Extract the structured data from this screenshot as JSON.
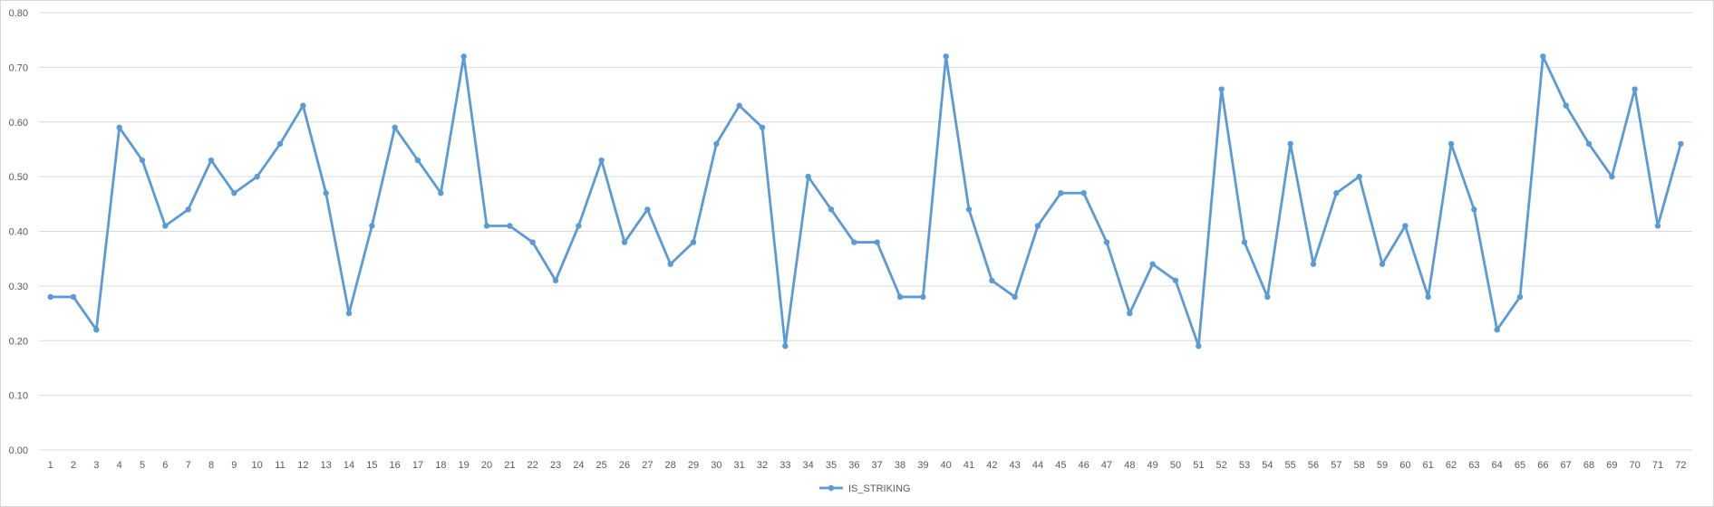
{
  "chart_data": {
    "type": "line",
    "title": "",
    "xlabel": "",
    "ylabel": "",
    "x": [
      1,
      2,
      3,
      4,
      5,
      6,
      7,
      8,
      9,
      10,
      11,
      12,
      13,
      14,
      15,
      16,
      17,
      18,
      19,
      20,
      21,
      22,
      23,
      24,
      25,
      26,
      27,
      28,
      29,
      30,
      31,
      32,
      33,
      34,
      35,
      36,
      37,
      38,
      39,
      40,
      41,
      42,
      43,
      44,
      45,
      46,
      47,
      48,
      49,
      50,
      51,
      52,
      53,
      54,
      55,
      56,
      57,
      58,
      59,
      60,
      61,
      62,
      63,
      64,
      65,
      66,
      67,
      68,
      69,
      70,
      71,
      72
    ],
    "yticks": [
      "0.00",
      "0.10",
      "0.20",
      "0.30",
      "0.40",
      "0.50",
      "0.60",
      "0.70",
      "0.80"
    ],
    "ylim": [
      0,
      0.8
    ],
    "grid": true,
    "legend_position": "bottom",
    "series": [
      {
        "name": "IS_STRIKING",
        "color": "#5b9bd5",
        "values": [
          0.28,
          0.28,
          0.22,
          0.59,
          0.53,
          0.41,
          0.44,
          0.53,
          0.47,
          0.5,
          0.56,
          0.63,
          0.47,
          0.25,
          0.41,
          0.59,
          0.53,
          0.47,
          0.72,
          0.41,
          0.41,
          0.38,
          0.31,
          0.41,
          0.53,
          0.38,
          0.44,
          0.34,
          0.38,
          0.56,
          0.63,
          0.59,
          0.19,
          0.5,
          0.44,
          0.38,
          0.38,
          0.28,
          0.28,
          0.72,
          0.44,
          0.31,
          0.28,
          0.41,
          0.47,
          0.47,
          0.38,
          0.25,
          0.34,
          0.31,
          0.19,
          0.66,
          0.38,
          0.28,
          0.56,
          0.34,
          0.47,
          0.5,
          0.34,
          0.41,
          0.28,
          0.56,
          0.44,
          0.22,
          0.28,
          0.72,
          0.63,
          0.56,
          0.5,
          0.66,
          0.41,
          0.56
        ]
      }
    ]
  }
}
